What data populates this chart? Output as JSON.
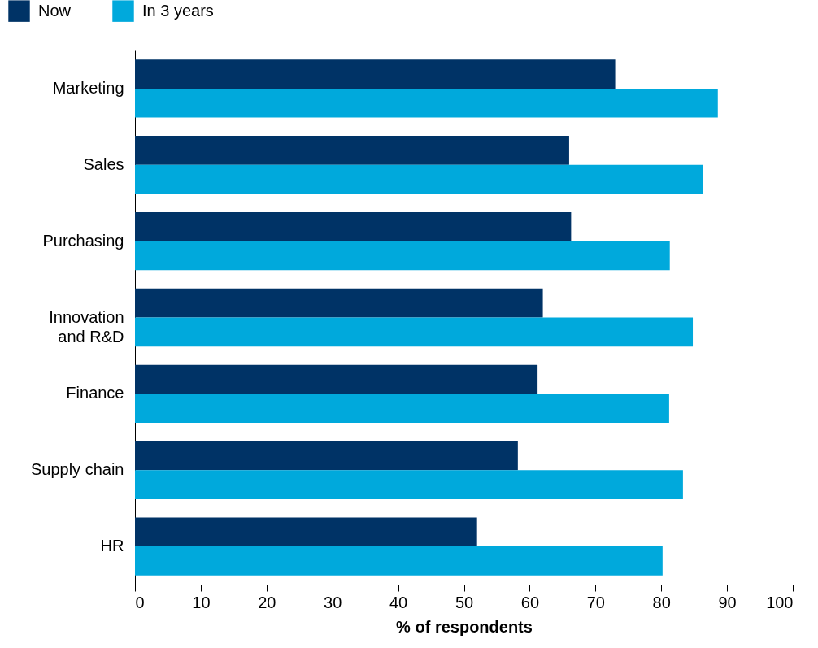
{
  "chart_data": {
    "type": "bar",
    "orientation": "horizontal",
    "xlabel": "% of respondents",
    "categories": [
      "Marketing",
      "Sales",
      "Purchasing",
      "Innovation and R&D",
      "Finance",
      "Supply chain",
      "HR"
    ],
    "series": [
      {
        "name": "Now",
        "color": "#003366",
        "values": [
          73,
          66,
          66.3,
          62,
          61.2,
          58.2,
          52
        ]
      },
      {
        "name": "In 3 years",
        "color": "#00a9dc",
        "values": [
          88.6,
          86.3,
          81.3,
          84.8,
          81.2,
          83.3,
          80.2
        ]
      }
    ],
    "xlim": [
      0,
      100
    ],
    "xticks": [
      0,
      10,
      20,
      30,
      40,
      50,
      60,
      70,
      80,
      90,
      100
    ],
    "grid": false,
    "legend": "top left"
  }
}
